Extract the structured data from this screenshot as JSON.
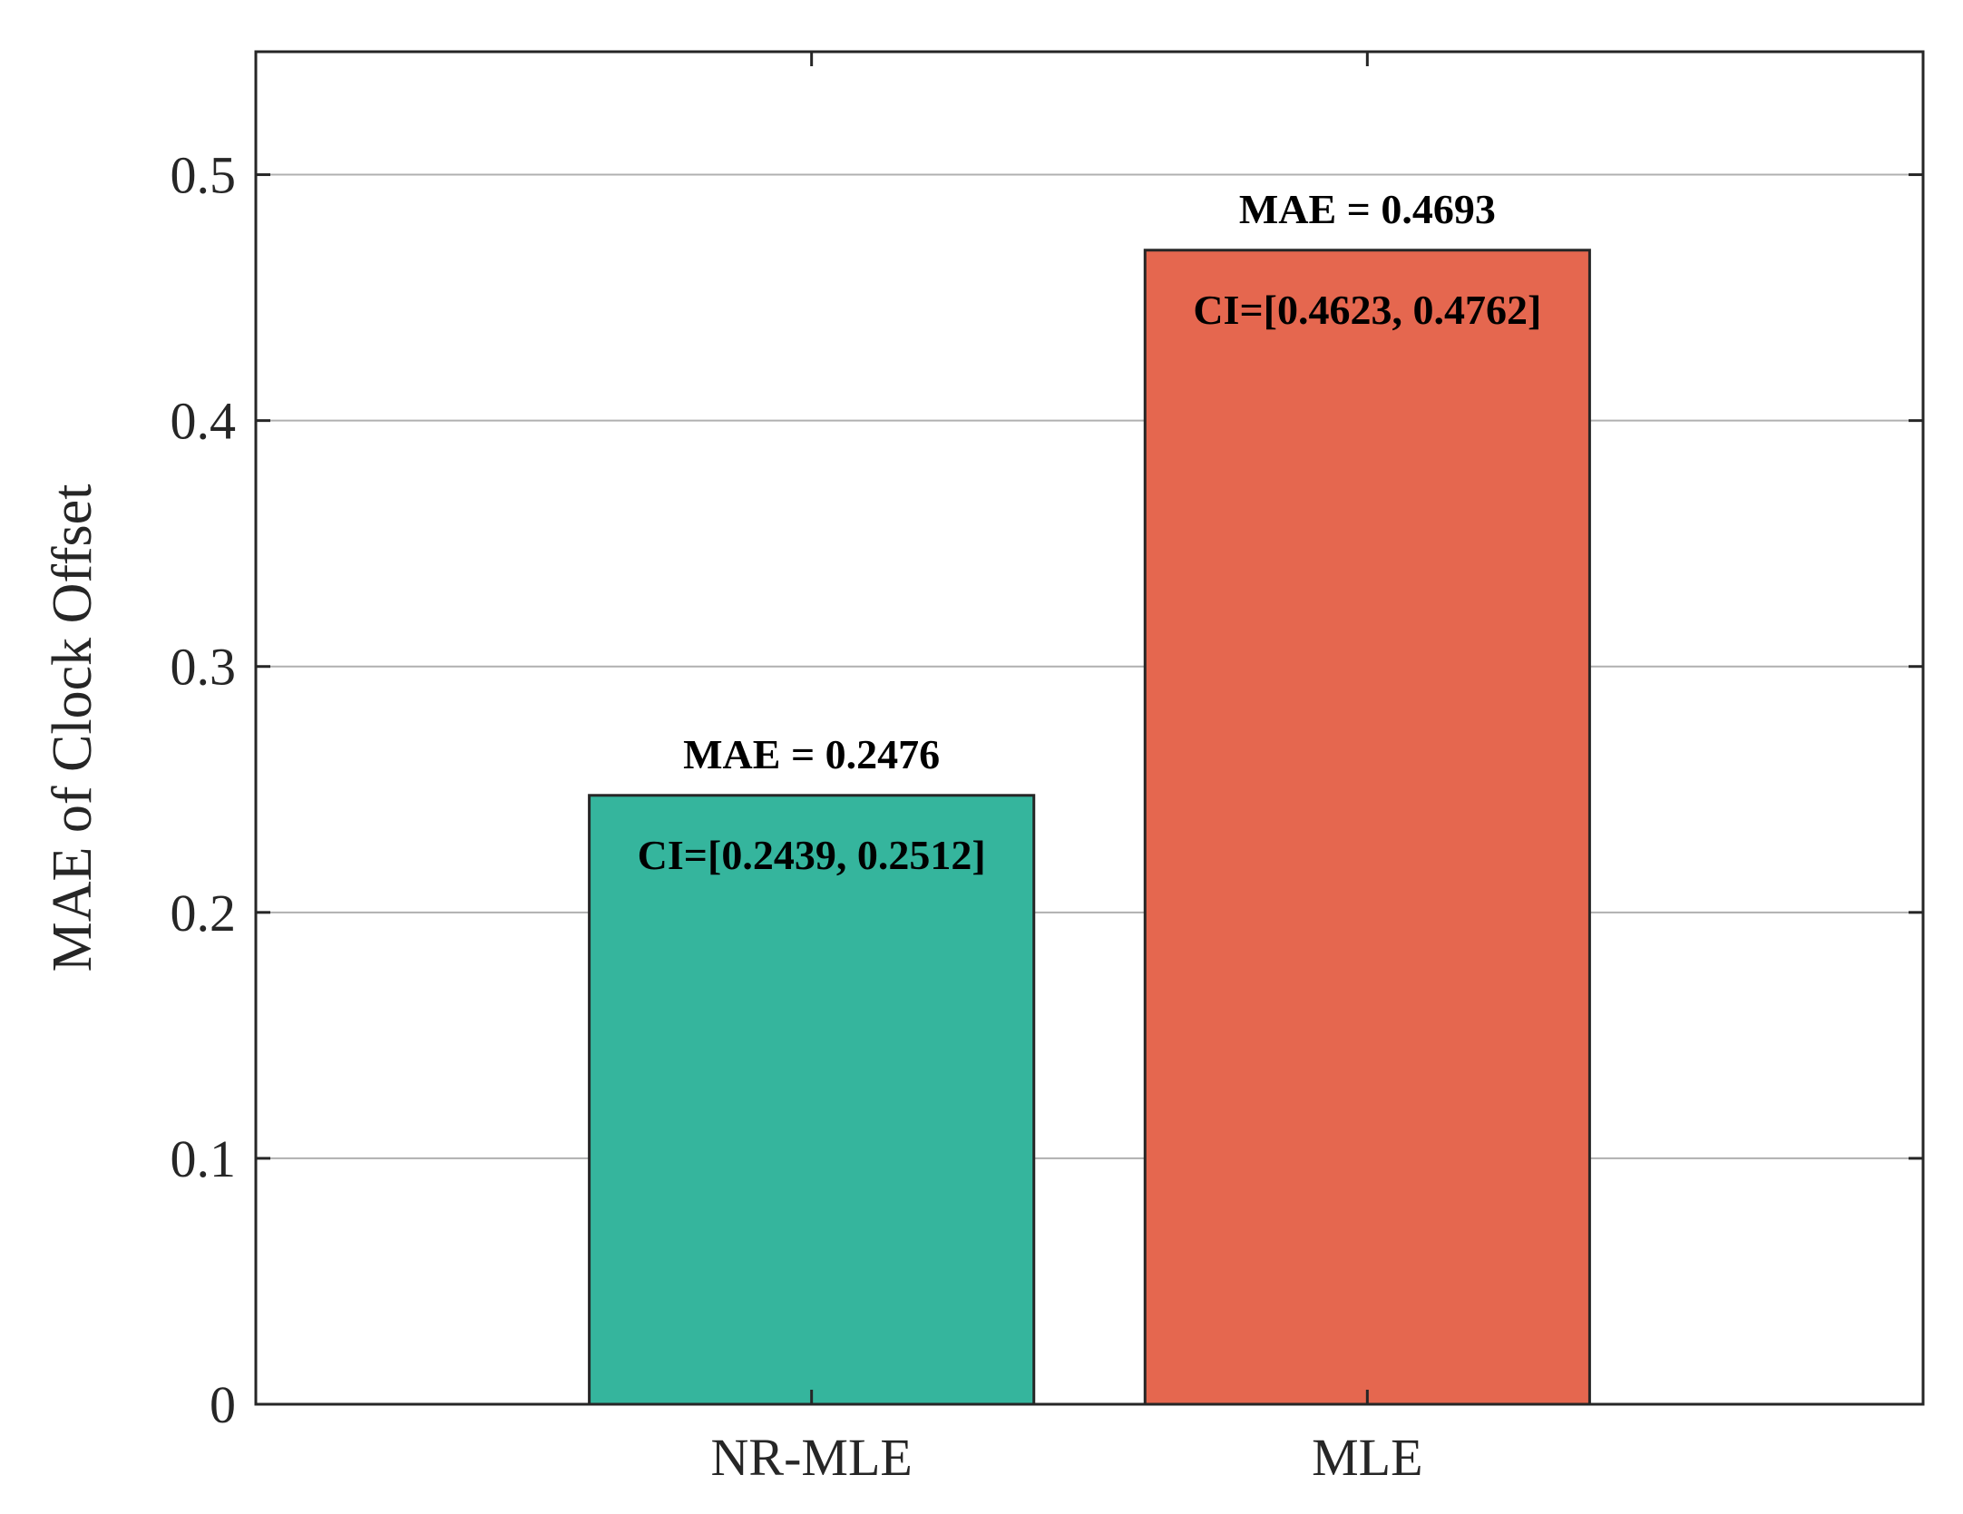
{
  "chart_data": {
    "type": "bar",
    "categories": [
      "NR-MLE",
      "MLE"
    ],
    "values": [
      0.2476,
      0.4693
    ],
    "colors": [
      "#35b59d",
      "#e5674f"
    ],
    "value_labels": [
      "MAE = 0.2476",
      "MAE = 0.4693"
    ],
    "ci_labels": [
      "CI=[0.2439, 0.2512]",
      "CI=[0.4623, 0.4762]"
    ],
    "title": "",
    "xlabel": "",
    "ylabel": "MAE of Clock Offset",
    "ylim": [
      0,
      0.55
    ],
    "yticks": [
      0,
      0.1,
      0.2,
      0.3,
      0.4,
      0.5
    ],
    "ytick_labels": [
      "0",
      "0.1",
      "0.2",
      "0.3",
      "0.4",
      "0.5"
    ],
    "grid": "y",
    "legend": "none"
  }
}
